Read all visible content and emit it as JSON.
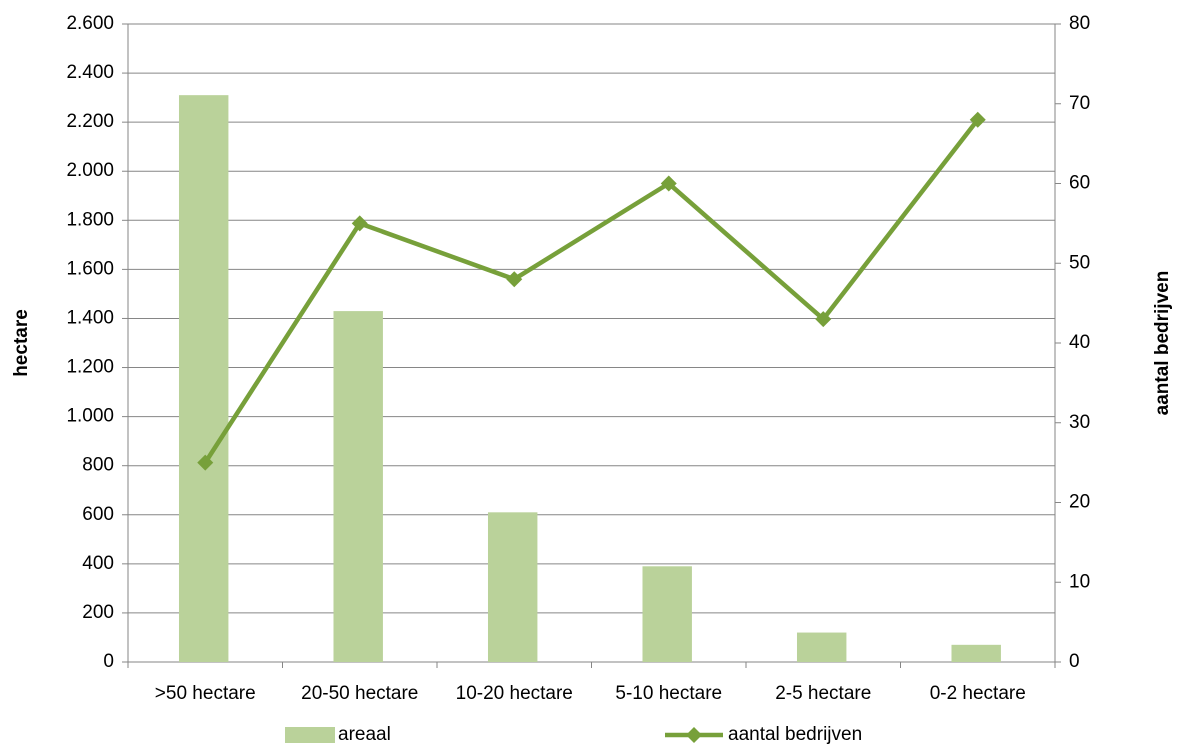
{
  "chart_data": {
    "type": "bar_line",
    "categories": [
      ">50 hectare",
      "20-50 hectare",
      "10-20 hectare",
      "5-10 hectare",
      "2-5 hectare",
      "0-2 hectare"
    ],
    "series": [
      {
        "name": "areaal",
        "type": "bar",
        "color": "#bad29a",
        "values": [
          2310,
          1430,
          610,
          390,
          120,
          70
        ]
      },
      {
        "name": "aantal bedrijven",
        "type": "line",
        "axis": "y2",
        "color": "#77a03a",
        "values": [
          25,
          55,
          48,
          60,
          43,
          68
        ]
      }
    ],
    "ylabel": "hectare",
    "y2label": "aantal bedrijven",
    "ylim": [
      0,
      2600
    ],
    "yticks": [
      0,
      200,
      400,
      600,
      800,
      {
        "value": 1000,
        "label": "1.000"
      },
      {
        "value": 1200,
        "label": "1.200"
      },
      {
        "value": 1400,
        "label": "1.400"
      },
      {
        "value": 1600,
        "label": "1.600"
      },
      {
        "value": 1800,
        "label": "1.800"
      },
      {
        "value": 2000,
        "label": "2.000"
      },
      {
        "value": 2200,
        "label": "2.200"
      },
      {
        "value": 2400,
        "label": "2.400"
      },
      {
        "value": 2600,
        "label": "2.600"
      }
    ],
    "y2lim": [
      0,
      80
    ],
    "y2ticks": [
      0,
      10,
      20,
      30,
      40,
      50,
      60,
      70,
      80
    ],
    "grid": true,
    "legend": "bottom"
  }
}
